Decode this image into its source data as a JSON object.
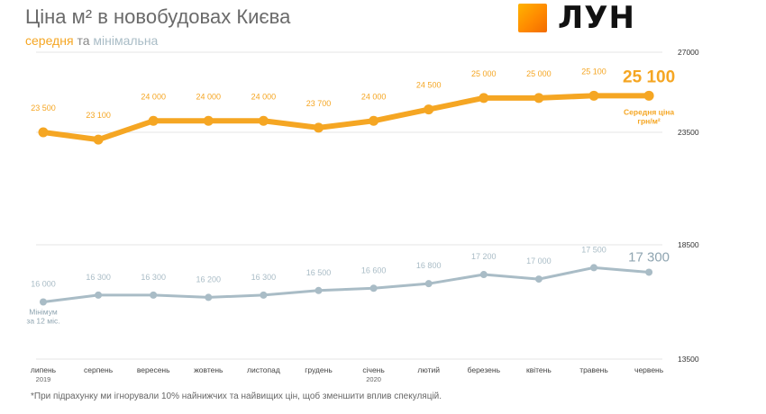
{
  "header": {
    "title": "Ціна м² в новобудовах Києва",
    "subtitle_avg": "середня",
    "subtitle_and": "та",
    "subtitle_min": "мінімальна"
  },
  "logo": {
    "text": "ЛУН",
    "icon": "lun-logo-square"
  },
  "colors": {
    "average": "#f5a623",
    "minimum": "#a9bcc6",
    "grid": "#e6e6e6",
    "text": "#6a6a6a"
  },
  "footnote": "*При підрахунку ми ігнорували 10% найнижчих та найвищих цін, щоб зменшити вплив спекуляцій.",
  "chart_data": {
    "type": "line",
    "categories": [
      "липень",
      "серпень",
      "вересень",
      "жовтень",
      "листопад",
      "грудень",
      "січень",
      "лютий",
      "березень",
      "квітень",
      "травень",
      "червень"
    ],
    "category_sublabels": [
      "2019",
      "",
      "",
      "",
      "",
      "",
      "2020",
      "",
      "",
      "",
      "",
      ""
    ],
    "y_ticks": [
      "27000",
      "23500",
      "18500",
      "13500"
    ],
    "ylim": [
      13500,
      27000
    ],
    "grid": true,
    "series": [
      {
        "key": "average",
        "values": [
          23500,
          23100,
          24000,
          24000,
          24000,
          23700,
          24000,
          24500,
          25000,
          25000,
          25100,
          25100
        ],
        "labels": [
          "23 500",
          "23 100",
          "24 000",
          "24 000",
          "24 000",
          "23 700",
          "24 000",
          "24 500",
          "25 000",
          "25 000",
          "25 100",
          "25 100"
        ],
        "end_label_line1": "Середня ціна",
        "end_label_line2": "грн/м²"
      },
      {
        "key": "minimum",
        "values": [
          16000,
          16300,
          16300,
          16200,
          16300,
          16500,
          16600,
          16800,
          17200,
          17000,
          17500,
          17300
        ],
        "labels": [
          "16 000",
          "16 300",
          "16 300",
          "16 200",
          "16 300",
          "16 500",
          "16 600",
          "16 800",
          "17 200",
          "17 000",
          "17 500",
          "17 300"
        ],
        "start_label_line1": "Мінімум",
        "start_label_line2": "за 12 міс."
      }
    ]
  }
}
